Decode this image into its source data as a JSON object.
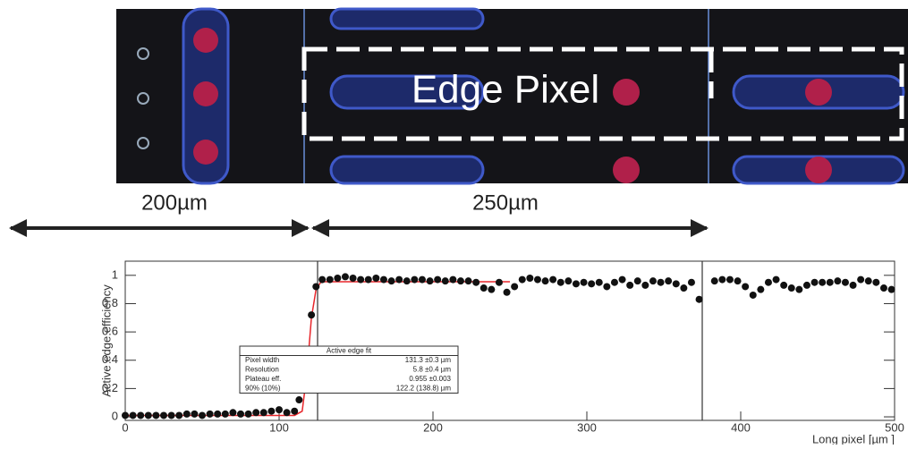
{
  "image": {
    "label": "Edge Pixel"
  },
  "dimensions": [
    {
      "label": "200µm"
    },
    {
      "label": "250µm"
    }
  ],
  "chart_data": {
    "type": "scatter",
    "ylabel": "Active edge efficiency",
    "xlabel": "Long pixel [µm ]",
    "color": "#111111",
    "x": [
      0,
      5,
      10,
      15,
      20,
      25,
      30,
      35,
      40,
      45,
      50,
      55,
      60,
      65,
      70,
      75,
      80,
      85,
      90,
      95,
      100,
      105,
      110,
      113,
      121,
      124,
      128,
      133,
      138,
      143,
      148,
      153,
      158,
      163,
      168,
      173,
      178,
      183,
      188,
      193,
      198,
      203,
      208,
      213,
      218,
      223,
      228,
      233,
      238,
      243,
      248,
      253,
      258,
      263,
      268,
      273,
      278,
      283,
      288,
      293,
      298,
      303,
      308,
      313,
      318,
      323,
      328,
      333,
      338,
      343,
      348,
      353,
      358,
      363,
      368,
      373,
      383,
      388,
      393,
      398,
      403,
      408,
      413,
      418,
      423,
      428,
      433,
      438,
      443,
      448,
      453,
      458,
      463,
      468,
      473,
      478,
      483,
      488,
      493,
      498
    ],
    "values": [
      0.01,
      0.01,
      0.01,
      0.01,
      0.01,
      0.01,
      0.01,
      0.01,
      0.02,
      0.02,
      0.01,
      0.02,
      0.02,
      0.02,
      0.03,
      0.02,
      0.02,
      0.03,
      0.03,
      0.04,
      0.05,
      0.03,
      0.04,
      0.12,
      0.72,
      0.92,
      0.97,
      0.97,
      0.98,
      0.99,
      0.98,
      0.97,
      0.97,
      0.98,
      0.97,
      0.96,
      0.97,
      0.96,
      0.97,
      0.97,
      0.96,
      0.97,
      0.96,
      0.97,
      0.96,
      0.96,
      0.95,
      0.91,
      0.9,
      0.95,
      0.88,
      0.92,
      0.97,
      0.98,
      0.97,
      0.96,
      0.97,
      0.95,
      0.96,
      0.94,
      0.95,
      0.94,
      0.95,
      0.92,
      0.95,
      0.97,
      0.93,
      0.96,
      0.93,
      0.96,
      0.95,
      0.96,
      0.94,
      0.91,
      0.95,
      0.83,
      0.96,
      0.97,
      0.97,
      0.96,
      0.92,
      0.86,
      0.9,
      0.95,
      0.97,
      0.93,
      0.91,
      0.9,
      0.93,
      0.95,
      0.95,
      0.95,
      0.96,
      0.95,
      0.93,
      0.97,
      0.96,
      0.95,
      0.91,
      0.9
    ],
    "fit": {
      "color": "#e8262b",
      "x": [
        0,
        110,
        115,
        118,
        121,
        124,
        127,
        130,
        140,
        250
      ],
      "values": [
        0.01,
        0.01,
        0.04,
        0.3,
        0.7,
        0.9,
        0.95,
        0.955,
        0.955,
        0.955
      ]
    },
    "vlines": [
      125,
      375
    ],
    "xlim": [
      0,
      500
    ],
    "ylim": [
      -0.025,
      1.1
    ],
    "xticks": [
      0,
      100,
      200,
      300,
      400,
      500
    ],
    "yticks": [
      0,
      0.2,
      0.4,
      0.6,
      0.8,
      1
    ],
    "stats_box": {
      "title": "Active edge fit",
      "rows": [
        [
          "Pixel width",
          "131.3 ±0.3 µm"
        ],
        [
          "Resolution",
          "5.8 ±0.4 µm"
        ],
        [
          "Plateau eff.",
          "0.955 ±0.003"
        ],
        [
          "90% (10%)",
          "122.2 (138.8)  µm"
        ]
      ]
    }
  }
}
